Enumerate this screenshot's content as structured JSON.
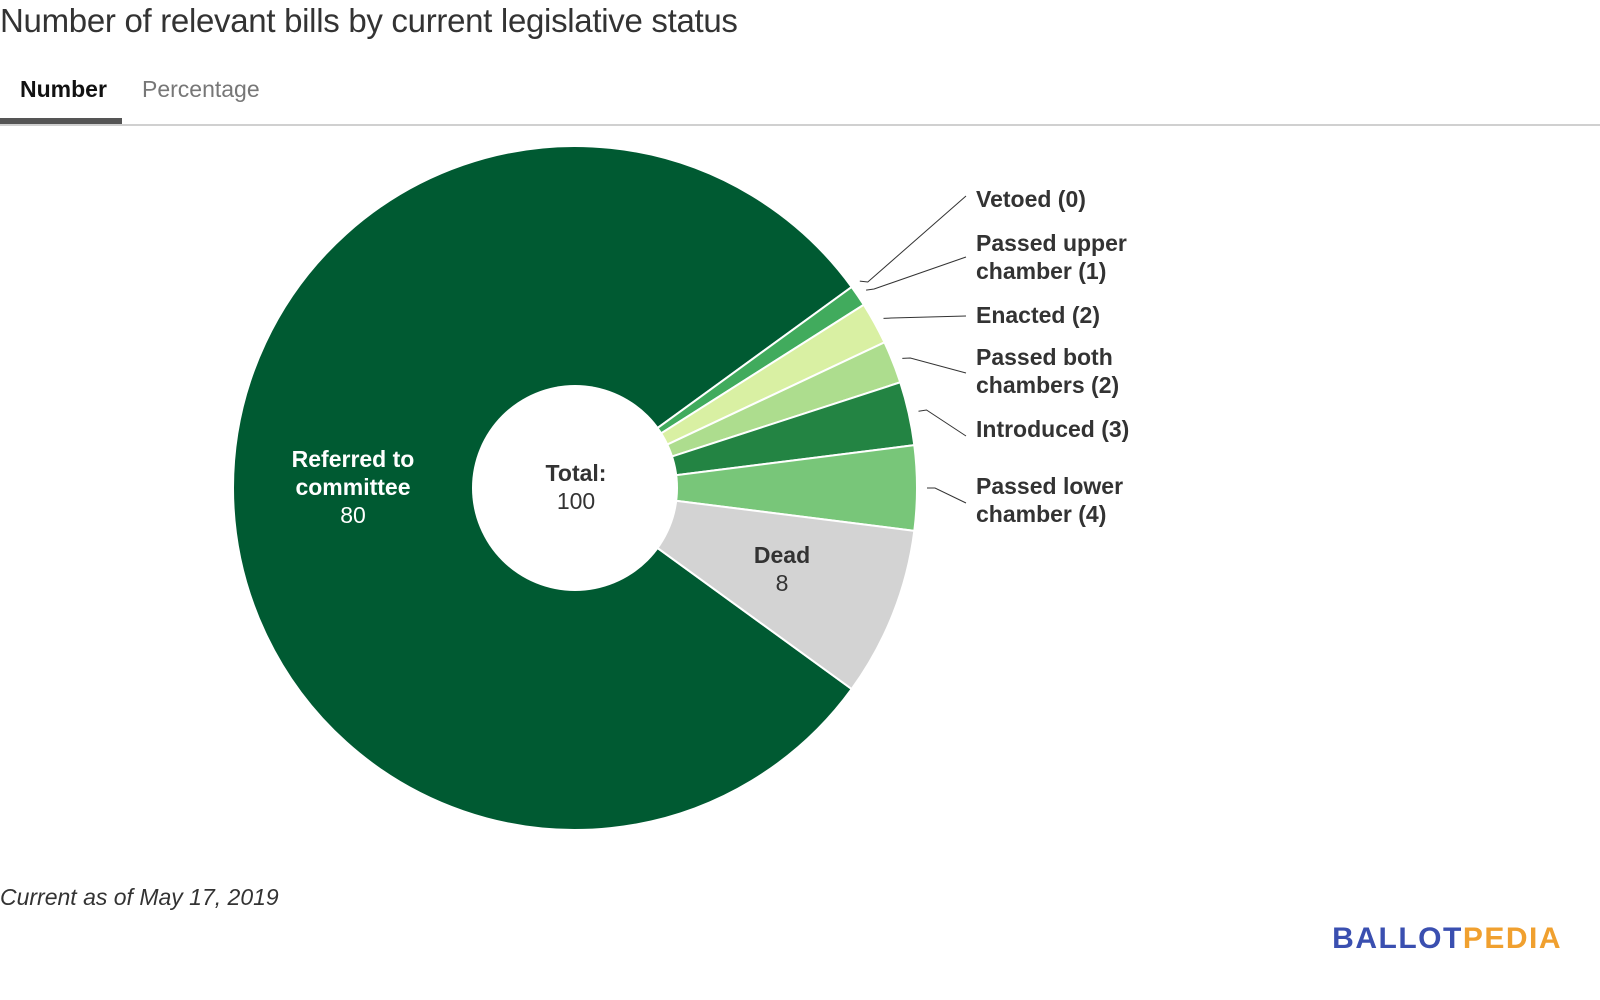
{
  "header": {
    "title": "Number of relevant bills by current legislative status"
  },
  "tabs": [
    {
      "label": "Number",
      "active": true
    },
    {
      "label": "Percentage",
      "active": false
    }
  ],
  "chart_data": {
    "type": "pie",
    "subtype": "donut",
    "title": "Number of relevant bills by current legislative status",
    "center_label": {
      "title": "Total:",
      "value": "100"
    },
    "total": 100,
    "slices": [
      {
        "name": "Referred to committee",
        "value": 80,
        "color": "#005a32",
        "label_lines": [
          "Referred to",
          "committee"
        ],
        "label_value": "80",
        "label_position": "inside"
      },
      {
        "name": "Vetoed",
        "value": 0,
        "color": "#005a32",
        "label_lines": [
          "Vetoed (0)"
        ],
        "label_position": "outside"
      },
      {
        "name": "Passed upper chamber",
        "value": 1,
        "color": "#41ab5d",
        "label_lines": [
          "Passed upper",
          "chamber (1)"
        ],
        "label_position": "outside"
      },
      {
        "name": "Enacted",
        "value": 2,
        "color": "#d9f0a3",
        "label_lines": [
          "Enacted (2)"
        ],
        "label_position": "outside"
      },
      {
        "name": "Passed both chambers",
        "value": 2,
        "color": "#addd8e",
        "label_lines": [
          "Passed both",
          "chambers (2)"
        ],
        "label_position": "outside"
      },
      {
        "name": "Introduced",
        "value": 3,
        "color": "#238443",
        "label_lines": [
          "Introduced (3)"
        ],
        "label_position": "outside"
      },
      {
        "name": "Passed lower chamber",
        "value": 4,
        "color": "#78c679",
        "label_lines": [
          "Passed lower",
          "chamber (4)"
        ],
        "label_position": "outside"
      },
      {
        "name": "Dead",
        "value": 8,
        "color": "#d3d3d3",
        "label_lines": [
          "Dead"
        ],
        "label_value": "8",
        "label_position": "inside"
      }
    ]
  },
  "footer": {
    "note": "Current as of May 17, 2019",
    "logo_part1": "BALLOT",
    "logo_part2": "PEDIA"
  }
}
